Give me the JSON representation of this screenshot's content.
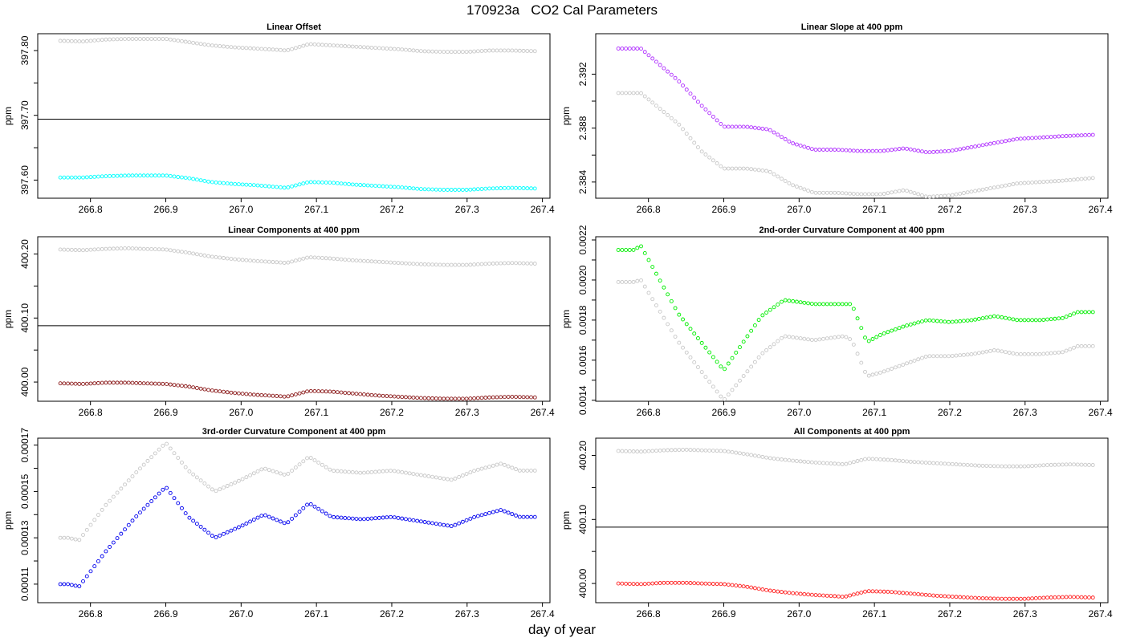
{
  "title": "170923a   CO2 Cal Parameters",
  "xlabel": "day of year",
  "chart_data": [
    {
      "type": "scatter",
      "title": "Linear Offset",
      "ylabel": "ppm",
      "xlim": [
        266.73,
        267.41
      ],
      "ylim": [
        397.572,
        397.826
      ],
      "xticks": [
        266.8,
        266.9,
        267.0,
        267.1,
        267.2,
        267.3,
        267.4
      ],
      "yticks": [
        397.6,
        397.65,
        397.7,
        397.75,
        397.8
      ],
      "yticklabels": [
        "397.60",
        "",
        "397.70",
        "",
        "397.80"
      ],
      "hline": 397.694,
      "series": [
        {
          "color": "#c8c8c8",
          "x": [
            266.76,
            266.79,
            266.82,
            266.85,
            266.87,
            266.9,
            266.93,
            266.96,
            266.99,
            267.02,
            267.05,
            267.06,
            267.07,
            267.09,
            267.12,
            267.15,
            267.18,
            267.21,
            267.24,
            267.27,
            267.3,
            267.33,
            267.36,
            267.39
          ],
          "y": [
            397.815,
            397.814,
            397.817,
            397.818,
            397.818,
            397.818,
            397.813,
            397.808,
            397.805,
            397.803,
            397.801,
            397.8,
            397.803,
            397.81,
            397.808,
            397.806,
            397.804,
            397.802,
            397.799,
            397.798,
            397.798,
            397.8,
            397.8,
            397.799
          ]
        },
        {
          "color": "#00ffff",
          "x": [
            266.76,
            266.79,
            266.82,
            266.85,
            266.87,
            266.9,
            266.93,
            266.96,
            266.99,
            267.02,
            267.05,
            267.06,
            267.07,
            267.09,
            267.12,
            267.15,
            267.18,
            267.21,
            267.24,
            267.27,
            267.3,
            267.33,
            267.36,
            267.39
          ],
          "y": [
            397.604,
            397.604,
            397.606,
            397.607,
            397.607,
            397.607,
            397.603,
            397.597,
            397.594,
            397.592,
            397.589,
            397.588,
            397.591,
            397.597,
            397.596,
            397.593,
            397.591,
            397.589,
            397.586,
            397.585,
            397.585,
            397.587,
            397.588,
            397.587
          ]
        }
      ]
    },
    {
      "type": "scatter",
      "title": "Linear Slope at 400 ppm",
      "ylabel": "ppm",
      "xlim": [
        266.73,
        267.41
      ],
      "ylim": [
        2.3828,
        2.395
      ],
      "xticks": [
        266.8,
        266.9,
        267.0,
        267.1,
        267.2,
        267.3,
        267.4
      ],
      "yticks": [
        2.384,
        2.386,
        2.388,
        2.39,
        2.392
      ],
      "yticklabels": [
        "2.384",
        "",
        "2.388",
        "",
        "2.392"
      ],
      "series": [
        {
          "color": "#c8c8c8",
          "x": [
            266.76,
            266.79,
            266.84,
            266.87,
            266.9,
            266.93,
            266.96,
            266.99,
            267.02,
            267.05,
            267.08,
            267.11,
            267.14,
            267.17,
            267.2,
            267.23,
            267.26,
            267.29,
            267.32,
            267.35,
            267.39
          ],
          "y": [
            2.3906,
            2.3906,
            2.3883,
            2.3863,
            2.385,
            2.385,
            2.3848,
            2.3838,
            2.3832,
            2.3832,
            2.3831,
            2.3831,
            2.3834,
            2.3829,
            2.383,
            2.3833,
            2.3836,
            2.3839,
            2.384,
            2.3841,
            2.3843
          ]
        },
        {
          "color": "#b030ff",
          "x": [
            266.76,
            266.79,
            266.84,
            266.87,
            266.9,
            266.93,
            266.96,
            266.99,
            267.02,
            267.05,
            267.08,
            267.11,
            267.14,
            267.17,
            267.2,
            267.23,
            267.26,
            267.29,
            267.32,
            267.35,
            267.39
          ],
          "y": [
            2.3939,
            2.3939,
            2.3915,
            2.3897,
            2.3881,
            2.3881,
            2.3879,
            2.3869,
            2.3864,
            2.3864,
            2.3863,
            2.3863,
            2.3865,
            2.3862,
            2.3863,
            2.3866,
            2.3869,
            2.3872,
            2.3873,
            2.3874,
            2.3875
          ]
        }
      ]
    },
    {
      "type": "scatter",
      "title": "Linear Components at 400 ppm",
      "ylabel": "ppm",
      "xlim": [
        266.73,
        267.41
      ],
      "ylim": [
        399.97,
        400.227
      ],
      "xticks": [
        266.8,
        266.9,
        267.0,
        267.1,
        267.2,
        267.3,
        267.4
      ],
      "yticks": [
        400.0,
        400.05,
        400.1,
        400.15,
        400.2
      ],
      "yticklabels": [
        "400.00",
        "",
        "400.10",
        "",
        "400.20"
      ],
      "hline": 400.088,
      "series": [
        {
          "color": "#c8c8c8",
          "x": [
            266.76,
            266.79,
            266.82,
            266.85,
            266.87,
            266.9,
            266.93,
            266.96,
            266.99,
            267.02,
            267.05,
            267.06,
            267.07,
            267.09,
            267.12,
            267.15,
            267.18,
            267.21,
            267.24,
            267.27,
            267.3,
            267.33,
            267.36,
            267.39
          ],
          "y": [
            400.207,
            400.206,
            400.208,
            400.209,
            400.208,
            400.207,
            400.202,
            400.196,
            400.192,
            400.189,
            400.187,
            400.186,
            400.189,
            400.195,
            400.193,
            400.19,
            400.188,
            400.186,
            400.184,
            400.183,
            400.183,
            400.185,
            400.186,
            400.185
          ]
        },
        {
          "color": "#8b1a1a",
          "x": [
            266.76,
            266.79,
            266.82,
            266.85,
            266.87,
            266.9,
            266.93,
            266.96,
            266.99,
            267.02,
            267.05,
            267.06,
            267.07,
            267.09,
            267.12,
            267.15,
            267.18,
            267.21,
            267.24,
            267.27,
            267.3,
            267.33,
            267.36,
            267.39
          ],
          "y": [
            399.998,
            399.997,
            399.999,
            399.999,
            399.998,
            399.997,
            399.993,
            399.987,
            399.983,
            399.98,
            399.978,
            399.977,
            399.98,
            399.986,
            399.985,
            399.982,
            399.979,
            399.977,
            399.975,
            399.974,
            399.974,
            399.976,
            399.977,
            399.976
          ]
        }
      ]
    },
    {
      "type": "scatter",
      "title": "2nd-order Curvature Component at 400 ppm",
      "ylabel": "ppm",
      "xlim": [
        266.73,
        267.41
      ],
      "ylim": [
        0.001395,
        0.002216
      ],
      "xticks": [
        266.8,
        266.9,
        267.0,
        267.1,
        267.2,
        267.3,
        267.4
      ],
      "yticks": [
        0.0014,
        0.0015,
        0.0016,
        0.0017,
        0.0018,
        0.0019,
        0.002,
        0.0021,
        0.0022
      ],
      "yticklabels": [
        "0.0014",
        "",
        "0.0016",
        "",
        "0.0018",
        "",
        "0.0020",
        "",
        "0.0022"
      ],
      "series": [
        {
          "color": "#c8c8c8",
          "x": [
            266.76,
            266.78,
            266.79,
            266.84,
            266.9,
            266.95,
            266.98,
            267.02,
            267.06,
            267.07,
            267.09,
            267.11,
            267.14,
            267.17,
            267.2,
            267.23,
            267.26,
            267.29,
            267.32,
            267.35,
            267.37,
            267.39
          ],
          "y": [
            0.00199,
            0.00199,
            0.002,
            0.00169,
            0.0014,
            0.00163,
            0.00172,
            0.0017,
            0.00172,
            0.0017,
            0.00152,
            0.00154,
            0.00158,
            0.00162,
            0.00162,
            0.00163,
            0.00165,
            0.00163,
            0.00163,
            0.00164,
            0.00167,
            0.00167
          ]
        },
        {
          "color": "#00ee00",
          "x": [
            266.76,
            266.78,
            266.79,
            266.84,
            266.9,
            266.95,
            266.98,
            267.02,
            267.06,
            267.07,
            267.09,
            267.11,
            267.14,
            267.17,
            267.2,
            267.23,
            267.26,
            267.29,
            267.32,
            267.35,
            267.37,
            267.39
          ],
          "y": [
            0.00215,
            0.00215,
            0.00217,
            0.00183,
            0.00155,
            0.00182,
            0.0019,
            0.00188,
            0.00188,
            0.00188,
            0.00169,
            0.00173,
            0.00177,
            0.0018,
            0.00179,
            0.0018,
            0.00182,
            0.0018,
            0.0018,
            0.00181,
            0.00184,
            0.00184
          ]
        }
      ]
    },
    {
      "type": "scatter",
      "title": "3rd-order Curvature Component at 400 ppm",
      "ylabel": "ppm",
      "xlim": [
        266.73,
        267.41
      ],
      "ylim": [
        0.000102,
        0.000173
      ],
      "xticks": [
        266.8,
        266.9,
        267.0,
        267.1,
        267.2,
        267.3,
        267.4
      ],
      "yticks": [
        0.00011,
        0.00012,
        0.00013,
        0.00014,
        0.00015,
        0.00016,
        0.00017
      ],
      "yticklabels": [
        "0.00011",
        "",
        "0.00013",
        "",
        "0.00015",
        "",
        "0.00017"
      ],
      "series": [
        {
          "color": "#c8c8c8",
          "x": [
            266.76,
            266.77,
            266.785,
            266.82,
            266.86,
            266.9,
            266.93,
            266.965,
            267.0,
            267.03,
            267.06,
            267.09,
            267.12,
            267.16,
            267.2,
            267.24,
            267.28,
            267.31,
            267.345,
            267.37,
            267.39
          ],
          "y": [
            0.00013,
            0.00013,
            0.000129,
            0.000144,
            0.000158,
            0.000171,
            0.000159,
            0.00015,
            0.000155,
            0.00016,
            0.000157,
            0.000165,
            0.000159,
            0.000158,
            0.000159,
            0.000157,
            0.000155,
            0.000159,
            0.000162,
            0.000159,
            0.000159
          ]
        },
        {
          "color": "#0000ee",
          "x": [
            266.76,
            266.77,
            266.785,
            266.82,
            266.86,
            266.9,
            266.93,
            266.965,
            267.0,
            267.03,
            267.06,
            267.09,
            267.12,
            267.16,
            267.2,
            267.24,
            267.28,
            267.31,
            267.345,
            267.37,
            267.39
          ],
          "y": [
            0.00011,
            0.00011,
            0.000109,
            0.000124,
            0.000139,
            0.000152,
            0.000139,
            0.00013,
            0.000135,
            0.00014,
            0.000136,
            0.000145,
            0.000139,
            0.000138,
            0.000139,
            0.000137,
            0.000135,
            0.000139,
            0.000142,
            0.000139,
            0.000139
          ]
        }
      ]
    },
    {
      "type": "scatter",
      "title": "All Components at 400 ppm",
      "ylabel": "ppm",
      "xlim": [
        266.73,
        267.41
      ],
      "ylim": [
        399.97,
        400.227
      ],
      "xticks": [
        266.8,
        266.9,
        267.0,
        267.1,
        267.2,
        267.3,
        267.4
      ],
      "yticks": [
        400.0,
        400.05,
        400.1,
        400.15,
        400.2
      ],
      "yticklabels": [
        "400.00",
        "",
        "400.10",
        "",
        "400.20"
      ],
      "hline": 400.088,
      "series": [
        {
          "color": "#c8c8c8",
          "x": [
            266.76,
            266.79,
            266.82,
            266.85,
            266.87,
            266.9,
            266.93,
            266.96,
            266.99,
            267.02,
            267.05,
            267.06,
            267.07,
            267.09,
            267.12,
            267.15,
            267.18,
            267.21,
            267.24,
            267.27,
            267.3,
            267.33,
            267.36,
            267.39
          ],
          "y": [
            400.207,
            400.206,
            400.208,
            400.209,
            400.208,
            400.207,
            400.202,
            400.196,
            400.192,
            400.189,
            400.187,
            400.186,
            400.189,
            400.195,
            400.193,
            400.19,
            400.188,
            400.186,
            400.184,
            400.183,
            400.183,
            400.185,
            400.186,
            400.185
          ]
        },
        {
          "color": "#ff2020",
          "x": [
            266.76,
            266.79,
            266.82,
            266.85,
            266.87,
            266.9,
            266.93,
            266.96,
            266.99,
            267.02,
            267.05,
            267.06,
            267.07,
            267.09,
            267.12,
            267.15,
            267.18,
            267.21,
            267.24,
            267.27,
            267.3,
            267.33,
            267.36,
            267.39
          ],
          "y": [
            400.0,
            399.999,
            400.001,
            400.001,
            400.0,
            399.999,
            399.995,
            399.989,
            399.985,
            399.982,
            399.98,
            399.979,
            399.982,
            399.988,
            399.987,
            399.984,
            399.981,
            399.979,
            399.977,
            399.976,
            399.976,
            399.978,
            399.979,
            399.978
          ]
        }
      ]
    }
  ]
}
